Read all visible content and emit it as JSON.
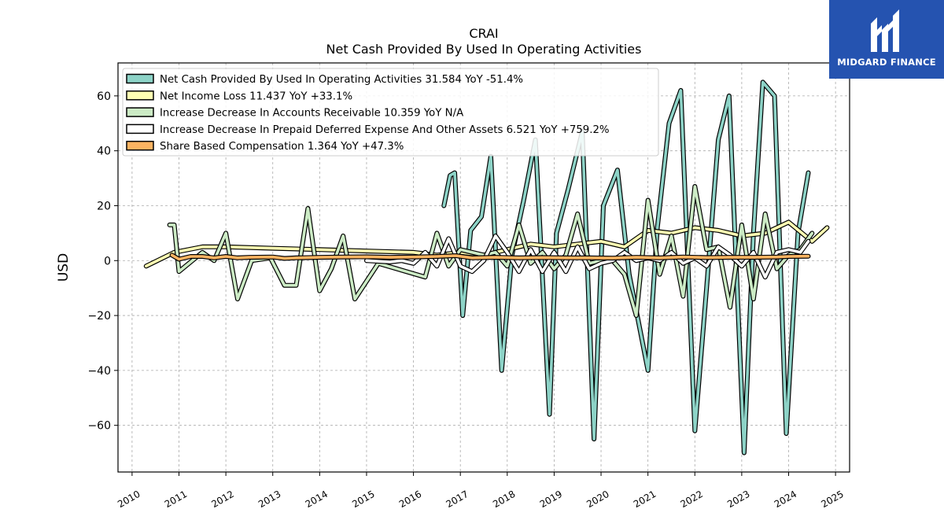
{
  "brand": {
    "name": "MIDGARD FINANCE",
    "color": "#2553b0"
  },
  "chart_data": {
    "type": "line",
    "title": "CRAI",
    "subtitle": "Net Cash Provided By Used In Operating Activities",
    "ylabel": "USD",
    "xlim": [
      2009.7,
      2025.3
    ],
    "ylim": [
      -77,
      72
    ],
    "yticks": [
      -60,
      -40,
      -20,
      0,
      20,
      40,
      60
    ],
    "xticks": [
      2010,
      2011,
      2012,
      2013,
      2014,
      2015,
      2016,
      2017,
      2018,
      2019,
      2020,
      2021,
      2022,
      2023,
      2024,
      2025
    ],
    "xtick_labels": [
      "2010",
      "2011",
      "2012",
      "2013",
      "2014",
      "2015",
      "2016",
      "2017",
      "2018",
      "2019",
      "2020",
      "2021",
      "2022",
      "2023",
      "2024",
      "2025"
    ],
    "ytick_labels": [
      "−60",
      "−40",
      "−20",
      "0",
      "20",
      "40",
      "60"
    ],
    "grid": true,
    "legend_position": "top-left",
    "series": [
      {
        "name": "Net Cash Provided By Used In Operating Activities  31.584 YoY -51.4%",
        "color": "#8dd3c7",
        "points": [
          [
            2016.65,
            20
          ],
          [
            2016.78,
            31
          ],
          [
            2016.88,
            32
          ],
          [
            2017.05,
            -20
          ],
          [
            2017.22,
            11
          ],
          [
            2017.45,
            16
          ],
          [
            2017.65,
            38
          ],
          [
            2017.88,
            -40
          ],
          [
            2018.1,
            2
          ],
          [
            2018.35,
            22
          ],
          [
            2018.6,
            44
          ],
          [
            2018.9,
            -56
          ],
          [
            2019.05,
            10
          ],
          [
            2019.3,
            26
          ],
          [
            2019.6,
            47
          ],
          [
            2019.85,
            -65
          ],
          [
            2020.05,
            20
          ],
          [
            2020.35,
            33
          ],
          [
            2020.6,
            -5
          ],
          [
            2021.0,
            -40
          ],
          [
            2021.2,
            12
          ],
          [
            2021.45,
            50
          ],
          [
            2021.7,
            62
          ],
          [
            2022.0,
            -62
          ],
          [
            2022.25,
            -10
          ],
          [
            2022.5,
            44
          ],
          [
            2022.73,
            60
          ],
          [
            2023.05,
            -70
          ],
          [
            2023.25,
            10
          ],
          [
            2023.45,
            65
          ],
          [
            2023.7,
            60
          ],
          [
            2023.95,
            -63
          ],
          [
            2024.2,
            10
          ],
          [
            2024.42,
            32
          ]
        ]
      },
      {
        "name": "Net Income Loss  11.437 YoY +33.1%",
        "color": "#ffffb3",
        "points": [
          [
            2010.3,
            -2
          ],
          [
            2010.9,
            3
          ],
          [
            2011.5,
            5
          ],
          [
            2012.0,
            5
          ],
          [
            2013.0,
            4.5
          ],
          [
            2014.0,
            4
          ],
          [
            2015.0,
            3.5
          ],
          [
            2016.0,
            3
          ],
          [
            2016.5,
            2
          ],
          [
            2017.0,
            3
          ],
          [
            2017.5,
            2
          ],
          [
            2018.0,
            4
          ],
          [
            2018.5,
            6
          ],
          [
            2019.0,
            5
          ],
          [
            2019.5,
            6
          ],
          [
            2020.0,
            7
          ],
          [
            2020.5,
            5
          ],
          [
            2021.0,
            11
          ],
          [
            2021.5,
            10
          ],
          [
            2022.0,
            12
          ],
          [
            2022.5,
            11
          ],
          [
            2023.0,
            9
          ],
          [
            2023.5,
            10
          ],
          [
            2024.0,
            14
          ],
          [
            2024.5,
            7
          ],
          [
            2024.82,
            12
          ]
        ]
      },
      {
        "name": "Increase Decrease In Accounts Receivable  10.359 YoY N/A",
        "color": "#ccebc5",
        "points": [
          [
            2010.8,
            13
          ],
          [
            2010.9,
            13
          ],
          [
            2011.0,
            -4
          ],
          [
            2011.5,
            3
          ],
          [
            2011.75,
            0
          ],
          [
            2012.0,
            10
          ],
          [
            2012.25,
            -14
          ],
          [
            2012.55,
            0
          ],
          [
            2012.95,
            1
          ],
          [
            2013.25,
            -9
          ],
          [
            2013.5,
            -9
          ],
          [
            2013.75,
            19
          ],
          [
            2014.0,
            -11
          ],
          [
            2014.25,
            -3
          ],
          [
            2014.5,
            9
          ],
          [
            2014.75,
            -14
          ],
          [
            2015.25,
            -1
          ],
          [
            2016.25,
            -6
          ],
          [
            2016.5,
            10
          ],
          [
            2016.75,
            -2
          ],
          [
            2017.0,
            4
          ],
          [
            2017.25,
            3
          ],
          [
            2017.5,
            2
          ],
          [
            2017.75,
            3
          ],
          [
            2018.0,
            -2
          ],
          [
            2018.25,
            13
          ],
          [
            2018.5,
            -1
          ],
          [
            2018.75,
            3
          ],
          [
            2019.0,
            -3
          ],
          [
            2019.25,
            2
          ],
          [
            2019.5,
            17
          ],
          [
            2019.75,
            -1
          ],
          [
            2020.0,
            0
          ],
          [
            2020.25,
            0
          ],
          [
            2020.5,
            -5
          ],
          [
            2020.75,
            -20
          ],
          [
            2021.0,
            22
          ],
          [
            2021.25,
            -5
          ],
          [
            2021.5,
            9
          ],
          [
            2021.75,
            -13
          ],
          [
            2022.0,
            27
          ],
          [
            2022.25,
            4
          ],
          [
            2022.5,
            5
          ],
          [
            2022.75,
            -17
          ],
          [
            2023.0,
            13
          ],
          [
            2023.25,
            -14
          ],
          [
            2023.5,
            17
          ],
          [
            2023.75,
            -3
          ],
          [
            2024.0,
            2
          ],
          [
            2024.25,
            4
          ],
          [
            2024.5,
            10
          ]
        ]
      },
      {
        "name": "Increase Decrease In Prepaid Deferred Expense And Other Assets  6.521 YoY +759.2%",
        "color": "#ffffff",
        "points": [
          [
            2015.0,
            0
          ],
          [
            2015.5,
            -0.5
          ],
          [
            2015.75,
            0
          ],
          [
            2016.0,
            -1
          ],
          [
            2016.25,
            3
          ],
          [
            2016.5,
            -2
          ],
          [
            2016.75,
            8
          ],
          [
            2017.0,
            -2
          ],
          [
            2017.25,
            -4
          ],
          [
            2017.5,
            0
          ],
          [
            2017.75,
            9
          ],
          [
            2018.0,
            3
          ],
          [
            2018.25,
            -4
          ],
          [
            2018.5,
            4
          ],
          [
            2018.75,
            -4
          ],
          [
            2019.0,
            3
          ],
          [
            2019.25,
            -4
          ],
          [
            2019.5,
            5
          ],
          [
            2019.75,
            -3
          ],
          [
            2020.0,
            -1
          ],
          [
            2020.25,
            0
          ],
          [
            2020.5,
            3
          ],
          [
            2020.75,
            0
          ],
          [
            2021.0,
            1
          ],
          [
            2021.25,
            0
          ],
          [
            2021.5,
            3
          ],
          [
            2021.75,
            -1
          ],
          [
            2022.0,
            1
          ],
          [
            2022.25,
            -2
          ],
          [
            2022.5,
            5
          ],
          [
            2022.75,
            2
          ],
          [
            2023.0,
            -2
          ],
          [
            2023.25,
            3
          ],
          [
            2023.5,
            -6
          ],
          [
            2023.75,
            3
          ],
          [
            2024.0,
            4
          ],
          [
            2024.25,
            3
          ],
          [
            2024.42,
            7
          ]
        ]
      },
      {
        "name": "Share Based Compensation  1.364 YoY +47.3%",
        "color": "#fdb462",
        "points": [
          [
            2010.85,
            2
          ],
          [
            2011.0,
            0.5
          ],
          [
            2011.25,
            1.5
          ],
          [
            2011.5,
            1.5
          ],
          [
            2011.75,
            1
          ],
          [
            2012.0,
            1.5
          ],
          [
            2012.25,
            1
          ],
          [
            2012.5,
            1.2
          ],
          [
            2013.0,
            1.3
          ],
          [
            2013.25,
            0.8
          ],
          [
            2013.5,
            1
          ],
          [
            2014.0,
            1.2
          ],
          [
            2014.5,
            1.3
          ],
          [
            2015.0,
            1.4
          ],
          [
            2015.5,
            1.2
          ],
          [
            2016.0,
            1.3
          ],
          [
            2016.5,
            1.5
          ],
          [
            2016.9,
            1.8
          ],
          [
            2017.25,
            1.0
          ],
          [
            2017.75,
            1.2
          ],
          [
            2018.25,
            1.0
          ],
          [
            2018.75,
            1.1
          ],
          [
            2019.25,
            1.0
          ],
          [
            2019.75,
            1.0
          ],
          [
            2020.25,
            0.9
          ],
          [
            2020.75,
            1.2
          ],
          [
            2021.25,
            1.0
          ],
          [
            2021.75,
            1.3
          ],
          [
            2022.25,
            1.1
          ],
          [
            2022.75,
            1.2
          ],
          [
            2023.25,
            1.2
          ],
          [
            2023.75,
            1.3
          ],
          [
            2024.0,
            1.5
          ],
          [
            2024.42,
            1.6
          ]
        ]
      }
    ]
  }
}
